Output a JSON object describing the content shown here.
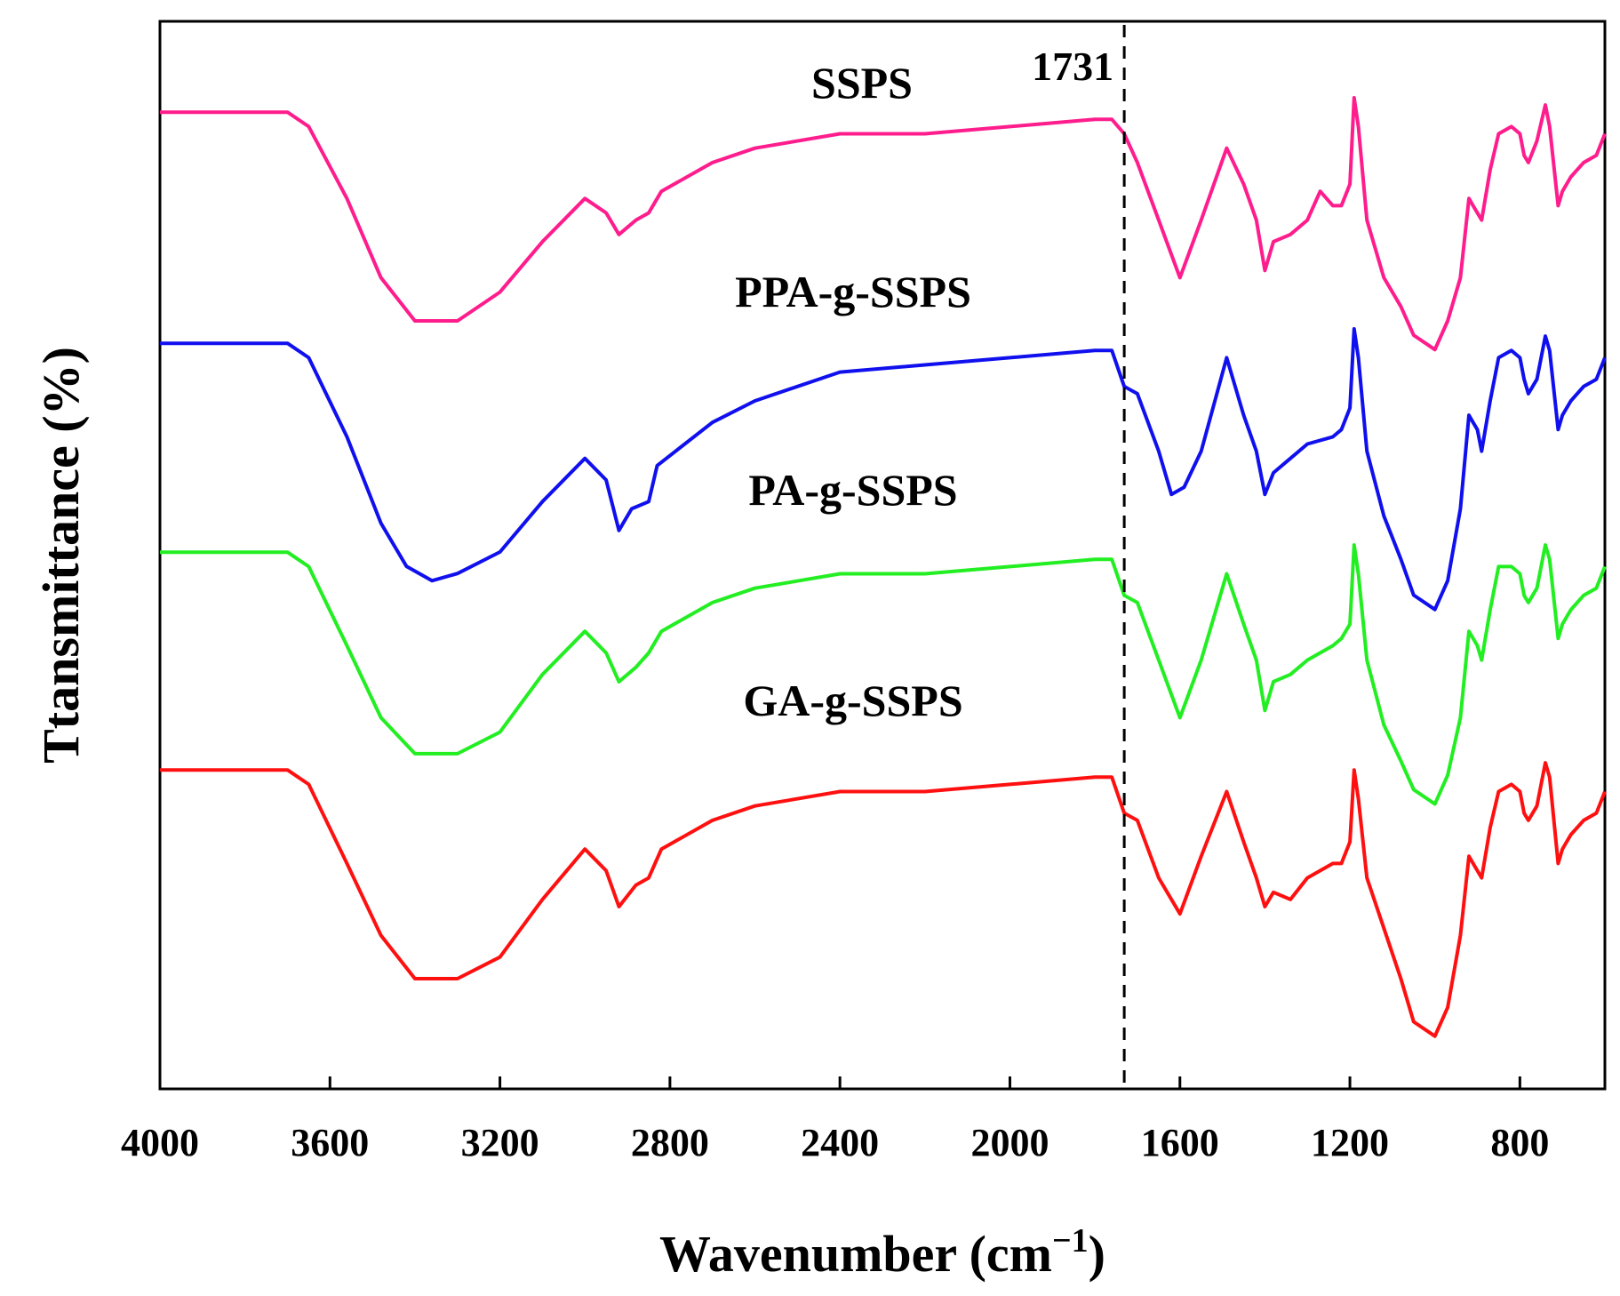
{
  "chart_data": {
    "type": "line",
    "xlabel": "Wavenumber (cm",
    "xlabel_sup": "−1",
    "xlabel_close": ")",
    "ylabel": "Ttansmittance (%)",
    "xlim": [
      4000,
      600
    ],
    "x_reversed": true,
    "x_ticks": [
      "4000",
      "3600",
      "3200",
      "2800",
      "2400",
      "2000",
      "1600",
      "1200",
      "800"
    ],
    "y_ticks_shown": false,
    "ylim": [
      0,
      100
    ],
    "grid": false,
    "annotation": {
      "label": "1731",
      "x": 1731,
      "style": "dashed"
    },
    "series": [
      {
        "name": "SSPS",
        "color": "#ff1c8c",
        "label_x": 2390,
        "points": [
          [
            4000,
            95
          ],
          [
            3700,
            95
          ],
          [
            3650,
            93
          ],
          [
            3560,
            83
          ],
          [
            3480,
            72
          ],
          [
            3400,
            66
          ],
          [
            3300,
            66
          ],
          [
            3200,
            70
          ],
          [
            3100,
            77
          ],
          [
            3000,
            83
          ],
          [
            2950,
            81
          ],
          [
            2920,
            78
          ],
          [
            2880,
            80
          ],
          [
            2850,
            81
          ],
          [
            2820,
            84
          ],
          [
            2700,
            88
          ],
          [
            2600,
            90
          ],
          [
            2400,
            92
          ],
          [
            2200,
            92
          ],
          [
            2000,
            93
          ],
          [
            1800,
            94
          ],
          [
            1760,
            94
          ],
          [
            1731,
            92
          ],
          [
            1700,
            88
          ],
          [
            1650,
            80
          ],
          [
            1600,
            72
          ],
          [
            1550,
            80
          ],
          [
            1490,
            90
          ],
          [
            1450,
            85
          ],
          [
            1420,
            80
          ],
          [
            1400,
            73
          ],
          [
            1380,
            77
          ],
          [
            1340,
            78
          ],
          [
            1300,
            80
          ],
          [
            1270,
            84
          ],
          [
            1240,
            82
          ],
          [
            1220,
            82
          ],
          [
            1200,
            85
          ],
          [
            1190,
            97
          ],
          [
            1180,
            93
          ],
          [
            1160,
            80
          ],
          [
            1120,
            72
          ],
          [
            1080,
            68
          ],
          [
            1050,
            64
          ],
          [
            1000,
            62
          ],
          [
            970,
            66
          ],
          [
            940,
            72
          ],
          [
            920,
            83
          ],
          [
            910,
            82
          ],
          [
            900,
            81
          ],
          [
            890,
            80
          ],
          [
            870,
            87
          ],
          [
            850,
            92
          ],
          [
            820,
            93
          ],
          [
            800,
            92
          ],
          [
            790,
            89
          ],
          [
            780,
            88
          ],
          [
            760,
            91
          ],
          [
            740,
            96
          ],
          [
            730,
            93
          ],
          [
            710,
            82
          ],
          [
            700,
            84
          ],
          [
            680,
            86
          ],
          [
            650,
            88
          ],
          [
            620,
            89
          ],
          [
            600,
            92
          ]
        ]
      },
      {
        "name": "PPA-g-SSPS",
        "color": "#1010ee",
        "label_x": 2390,
        "points": [
          [
            4000,
            95
          ],
          [
            3700,
            95
          ],
          [
            3650,
            93
          ],
          [
            3560,
            82
          ],
          [
            3480,
            70
          ],
          [
            3420,
            64
          ],
          [
            3360,
            62
          ],
          [
            3300,
            63
          ],
          [
            3200,
            66
          ],
          [
            3100,
            73
          ],
          [
            3000,
            79
          ],
          [
            2950,
            76
          ],
          [
            2920,
            69
          ],
          [
            2890,
            72
          ],
          [
            2850,
            73
          ],
          [
            2830,
            78
          ],
          [
            2700,
            84
          ],
          [
            2600,
            87
          ],
          [
            2400,
            91
          ],
          [
            2200,
            92
          ],
          [
            2000,
            93
          ],
          [
            1800,
            94
          ],
          [
            1760,
            94
          ],
          [
            1731,
            89
          ],
          [
            1700,
            88
          ],
          [
            1650,
            80
          ],
          [
            1620,
            74
          ],
          [
            1590,
            75
          ],
          [
            1550,
            80
          ],
          [
            1490,
            93
          ],
          [
            1450,
            85
          ],
          [
            1420,
            80
          ],
          [
            1400,
            74
          ],
          [
            1380,
            77
          ],
          [
            1340,
            79
          ],
          [
            1300,
            81
          ],
          [
            1240,
            82
          ],
          [
            1220,
            83
          ],
          [
            1200,
            86
          ],
          [
            1190,
            97
          ],
          [
            1180,
            93
          ],
          [
            1160,
            80
          ],
          [
            1120,
            71
          ],
          [
            1080,
            65
          ],
          [
            1050,
            60
          ],
          [
            1000,
            58
          ],
          [
            970,
            62
          ],
          [
            940,
            72
          ],
          [
            920,
            85
          ],
          [
            910,
            84
          ],
          [
            900,
            83
          ],
          [
            890,
            80
          ],
          [
            870,
            87
          ],
          [
            850,
            93
          ],
          [
            820,
            94
          ],
          [
            800,
            93
          ],
          [
            790,
            90
          ],
          [
            780,
            88
          ],
          [
            760,
            90
          ],
          [
            740,
            96
          ],
          [
            730,
            94
          ],
          [
            710,
            83
          ],
          [
            700,
            85
          ],
          [
            680,
            87
          ],
          [
            650,
            89
          ],
          [
            620,
            90
          ],
          [
            600,
            93
          ]
        ]
      },
      {
        "name": "PA-g-SSPS",
        "color": "#22ee22",
        "label_x": 2400,
        "points": [
          [
            4000,
            95
          ],
          [
            3700,
            95
          ],
          [
            3650,
            93
          ],
          [
            3560,
            82
          ],
          [
            3480,
            72
          ],
          [
            3400,
            67
          ],
          [
            3300,
            67
          ],
          [
            3200,
            70
          ],
          [
            3100,
            78
          ],
          [
            3000,
            84
          ],
          [
            2950,
            81
          ],
          [
            2920,
            77
          ],
          [
            2880,
            79
          ],
          [
            2850,
            81
          ],
          [
            2820,
            84
          ],
          [
            2700,
            88
          ],
          [
            2600,
            90
          ],
          [
            2400,
            92
          ],
          [
            2200,
            92
          ],
          [
            2000,
            93
          ],
          [
            1800,
            94
          ],
          [
            1760,
            94
          ],
          [
            1731,
            89
          ],
          [
            1700,
            88
          ],
          [
            1650,
            80
          ],
          [
            1600,
            72
          ],
          [
            1550,
            80
          ],
          [
            1490,
            92
          ],
          [
            1450,
            85
          ],
          [
            1420,
            80
          ],
          [
            1400,
            73
          ],
          [
            1380,
            77
          ],
          [
            1340,
            78
          ],
          [
            1300,
            80
          ],
          [
            1240,
            82
          ],
          [
            1220,
            83
          ],
          [
            1200,
            85
          ],
          [
            1190,
            96
          ],
          [
            1180,
            92
          ],
          [
            1160,
            80
          ],
          [
            1120,
            71
          ],
          [
            1080,
            66
          ],
          [
            1050,
            62
          ],
          [
            1000,
            60
          ],
          [
            970,
            64
          ],
          [
            940,
            72
          ],
          [
            920,
            84
          ],
          [
            910,
            83
          ],
          [
            900,
            82
          ],
          [
            890,
            80
          ],
          [
            870,
            87
          ],
          [
            850,
            93
          ],
          [
            820,
            93
          ],
          [
            800,
            92
          ],
          [
            790,
            89
          ],
          [
            780,
            88
          ],
          [
            760,
            90
          ],
          [
            740,
            96
          ],
          [
            730,
            94
          ],
          [
            710,
            83
          ],
          [
            700,
            85
          ],
          [
            680,
            87
          ],
          [
            650,
            89
          ],
          [
            620,
            90
          ],
          [
            600,
            93
          ]
        ]
      },
      {
        "name": "GA-g-SSPS",
        "color": "#ff1010",
        "label_x": 2390,
        "points": [
          [
            4000,
            95
          ],
          [
            3700,
            95
          ],
          [
            3650,
            93
          ],
          [
            3560,
            82
          ],
          [
            3480,
            72
          ],
          [
            3400,
            66
          ],
          [
            3300,
            66
          ],
          [
            3200,
            69
          ],
          [
            3100,
            77
          ],
          [
            3000,
            84
          ],
          [
            2950,
            81
          ],
          [
            2920,
            76
          ],
          [
            2880,
            79
          ],
          [
            2850,
            80
          ],
          [
            2820,
            84
          ],
          [
            2700,
            88
          ],
          [
            2600,
            90
          ],
          [
            2400,
            92
          ],
          [
            2200,
            92
          ],
          [
            2000,
            93
          ],
          [
            1800,
            94
          ],
          [
            1760,
            94
          ],
          [
            1731,
            89
          ],
          [
            1700,
            88
          ],
          [
            1650,
            80
          ],
          [
            1600,
            75
          ],
          [
            1550,
            83
          ],
          [
            1490,
            92
          ],
          [
            1450,
            85
          ],
          [
            1420,
            80
          ],
          [
            1400,
            76
          ],
          [
            1380,
            78
          ],
          [
            1340,
            77
          ],
          [
            1300,
            80
          ],
          [
            1240,
            82
          ],
          [
            1220,
            82
          ],
          [
            1200,
            85
          ],
          [
            1190,
            95
          ],
          [
            1180,
            91
          ],
          [
            1160,
            80
          ],
          [
            1120,
            73
          ],
          [
            1080,
            66
          ],
          [
            1050,
            60
          ],
          [
            1000,
            58
          ],
          [
            970,
            62
          ],
          [
            940,
            72
          ],
          [
            920,
            83
          ],
          [
            910,
            82
          ],
          [
            900,
            81
          ],
          [
            890,
            80
          ],
          [
            870,
            87
          ],
          [
            850,
            92
          ],
          [
            820,
            93
          ],
          [
            800,
            92
          ],
          [
            790,
            89
          ],
          [
            780,
            88
          ],
          [
            760,
            90
          ],
          [
            740,
            96
          ],
          [
            730,
            94
          ],
          [
            710,
            82
          ],
          [
            700,
            84
          ],
          [
            680,
            86
          ],
          [
            650,
            88
          ],
          [
            620,
            89
          ],
          [
            600,
            92
          ]
        ]
      }
    ]
  }
}
